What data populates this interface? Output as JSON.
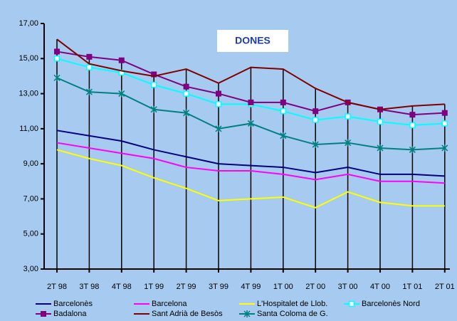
{
  "chart_data": {
    "type": "line",
    "title": "DONES",
    "categories": [
      "2T 98",
      "3T 98",
      "4T 98",
      "1T 99",
      "2T 99",
      "3T 99",
      "4T 99",
      "1T 00",
      "2T 00",
      "3T 00",
      "4T 00",
      "1T 01",
      "2T 01"
    ],
    "ylim": [
      3,
      17
    ],
    "yticks": [
      {
        "value": 3,
        "label": "3,00"
      },
      {
        "value": 5,
        "label": "5,00"
      },
      {
        "value": 7,
        "label": "7,00"
      },
      {
        "value": 9,
        "label": "9,00"
      },
      {
        "value": 11,
        "label": "11,00"
      },
      {
        "value": 13,
        "label": "13,00"
      },
      {
        "value": 15,
        "label": "15,00"
      },
      {
        "value": 17,
        "label": "17,00"
      }
    ],
    "series": [
      {
        "name": "Barcelonès",
        "color": "#000080",
        "values": [
          10.9,
          10.6,
          10.3,
          9.8,
          9.4,
          9.0,
          8.9,
          8.8,
          8.5,
          8.8,
          8.4,
          8.4,
          8.3
        ]
      },
      {
        "name": "Barcelona",
        "color": "#ff00ff",
        "values": [
          10.2,
          9.9,
          9.6,
          9.3,
          8.8,
          8.6,
          8.6,
          8.4,
          8.1,
          8.4,
          8.0,
          8.0,
          7.9
        ]
      },
      {
        "name": "L'Hospitalet de Llob.",
        "color": "#ffff00",
        "values": [
          9.8,
          9.3,
          8.9,
          8.2,
          7.6,
          6.9,
          7.0,
          7.1,
          6.5,
          7.4,
          6.8,
          6.6,
          6.6
        ]
      },
      {
        "name": "Barcelonès Nord",
        "color": "#00ffff",
        "marker": "open-square",
        "values": [
          15.0,
          14.5,
          14.2,
          13.5,
          13.0,
          12.4,
          12.4,
          12.0,
          11.5,
          11.7,
          11.4,
          11.2,
          11.3
        ]
      },
      {
        "name": "Badalona",
        "color": "#800080",
        "marker": "square",
        "values": [
          15.4,
          15.1,
          14.9,
          14.1,
          13.4,
          13.0,
          12.5,
          12.5,
          12.0,
          12.5,
          12.1,
          11.8,
          11.9
        ]
      },
      {
        "name": "Sant Adrià de Besòs",
        "color": "#800000",
        "values": [
          16.1,
          14.7,
          14.3,
          14.0,
          14.4,
          13.6,
          14.5,
          14.4,
          13.3,
          12.5,
          12.1,
          12.3,
          12.4
        ]
      },
      {
        "name": "Santa Coloma de G.",
        "color": "#008080",
        "marker": "star",
        "values": [
          13.9,
          13.1,
          13.0,
          12.1,
          11.9,
          11.0,
          11.3,
          10.6,
          10.1,
          10.2,
          9.9,
          9.8,
          9.9
        ]
      }
    ]
  }
}
